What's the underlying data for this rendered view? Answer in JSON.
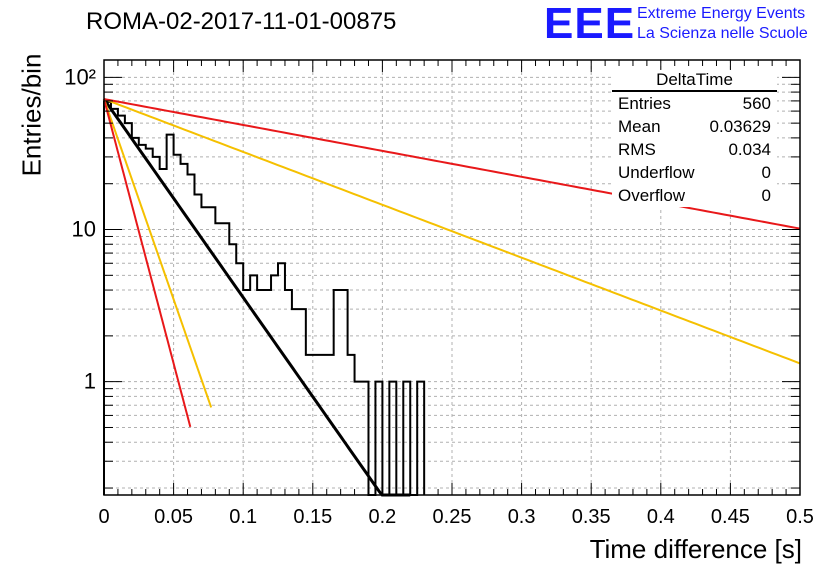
{
  "header": {
    "title": "ROMA-02-2017-11-01-00875",
    "logo": "EEE",
    "logo_line1": "Extreme Energy Events",
    "logo_line2": "La Scienza nelle Scuole"
  },
  "stats_box": {
    "title": "DeltaTime",
    "rows": [
      {
        "label": "Entries",
        "value": "560"
      },
      {
        "label": "Mean",
        "value": "0.03629"
      },
      {
        "label": "RMS",
        "value": "0.034"
      },
      {
        "label": "Underflow",
        "value": "0"
      },
      {
        "label": "Overflow",
        "value": "0"
      }
    ]
  },
  "colors": {
    "histogram": "#000000",
    "fit_black": "#000000",
    "fit_red": "#e8181a",
    "fit_yellow": "#f5c000",
    "grid": "#b0b0b0"
  },
  "chart_data": {
    "type": "histogram",
    "title": "ROMA-02-2017-11-01-00875",
    "xlabel": "Time difference [s]",
    "ylabel": "Entries/bin",
    "xlim": [
      0,
      0.5
    ],
    "ylim": [
      0.18,
      130
    ],
    "yscale": "log",
    "grid": true,
    "x_ticks": [
      "0",
      "0.05",
      "0.1",
      "0.15",
      "0.2",
      "0.25",
      "0.3",
      "0.35",
      "0.4",
      "0.45",
      "0.5"
    ],
    "y_ticks": [
      "1",
      "10",
      "10²"
    ],
    "bin_width": 0.005,
    "histogram_values": [
      69,
      62,
      56,
      50,
      40,
      36,
      34,
      30,
      25,
      42,
      31,
      27,
      23,
      17,
      14,
      14,
      11,
      11,
      8,
      6,
      4,
      5,
      4,
      4,
      5,
      6,
      4,
      3,
      3,
      1.5,
      1.5,
      1.5,
      1.5,
      4,
      4,
      1.5,
      1,
      1,
      0.1,
      1,
      0.1,
      1,
      0.1,
      1,
      0.1,
      1
    ],
    "fit_lines": [
      {
        "color": "black",
        "amplitude": 72,
        "tau": 0.0333,
        "x_range": [
          0,
          0.22
        ]
      },
      {
        "color": "yellow",
        "amplitude": 72,
        "tau": 0.0165,
        "x_range": [
          0,
          0.077
        ]
      },
      {
        "color": "red",
        "amplitude": 72,
        "tau": 0.0125,
        "x_range": [
          0,
          0.062
        ]
      },
      {
        "color": "yellow",
        "amplitude": 72,
        "tau": 0.125,
        "x_range": [
          0,
          0.5
        ]
      },
      {
        "color": "red",
        "amplitude": 72,
        "tau": 0.255,
        "x_range": [
          0,
          0.5
        ]
      }
    ]
  }
}
